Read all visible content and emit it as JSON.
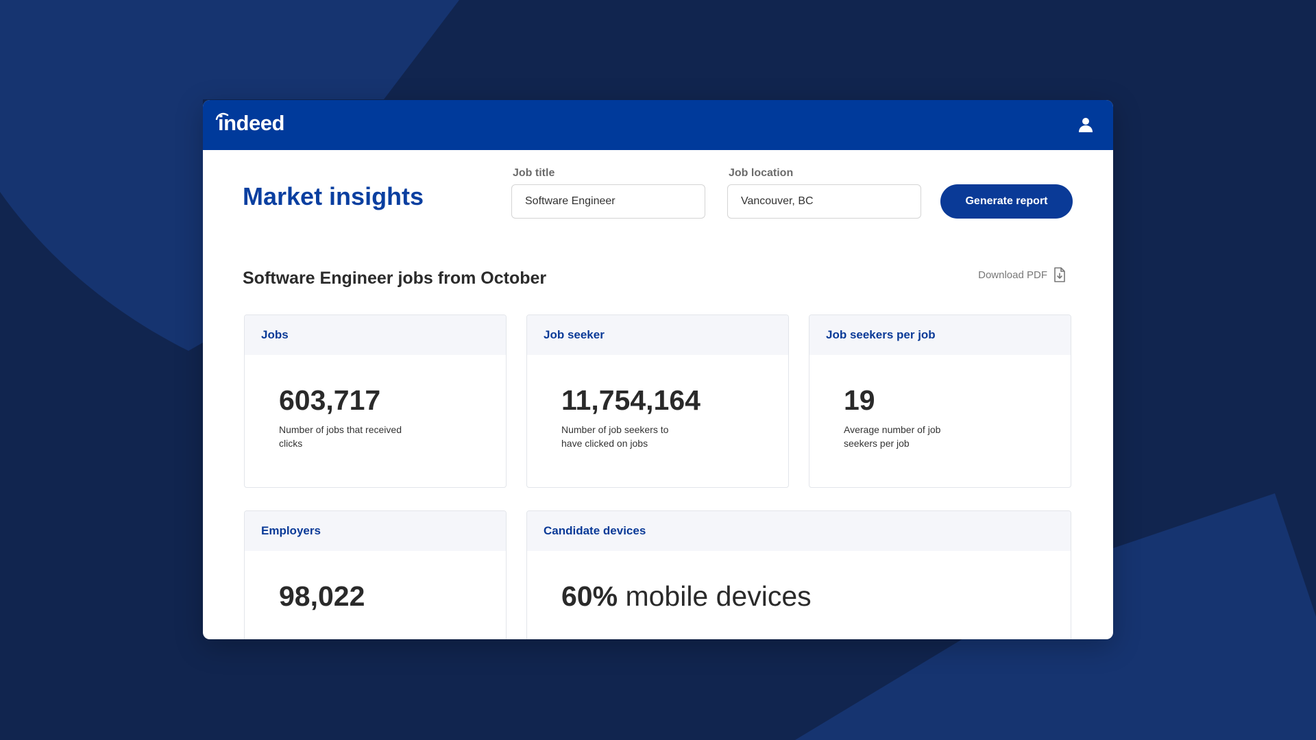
{
  "header": {
    "logo_text": "indeed",
    "user_icon": "user-icon"
  },
  "page": {
    "title": "Market insights"
  },
  "form": {
    "job_title_label": "Job title",
    "job_title_value": "Software Engineer",
    "job_location_label": "Job location",
    "job_location_value": "Vancouver, BC",
    "generate_label": "Generate report"
  },
  "results": {
    "heading_job": "Software Engineer",
    "heading_mid": " jobs from ",
    "heading_month": "October",
    "download_label": "Download PDF",
    "download_icon": "pdf-download-icon"
  },
  "cards": {
    "jobs": {
      "title": "Jobs",
      "value": "603,717",
      "desc": "Number of jobs that received clicks"
    },
    "job_seeker": {
      "title": "Job seeker",
      "value": "11,754,164",
      "desc": "Number of job seekers to have clicked on jobs"
    },
    "per_job": {
      "title": "Job seekers per job",
      "value": "19",
      "desc": "Average number of job seekers per job"
    },
    "employers": {
      "title": "Employers",
      "value": "98,022"
    },
    "devices": {
      "title": "Candidate devices",
      "value": "60%",
      "suffix": " mobile devices"
    }
  },
  "colors": {
    "background": "#11254f",
    "brand_blue": "#003a9b",
    "button": "#0a3a97",
    "card_header_bg": "#f5f6fa"
  }
}
